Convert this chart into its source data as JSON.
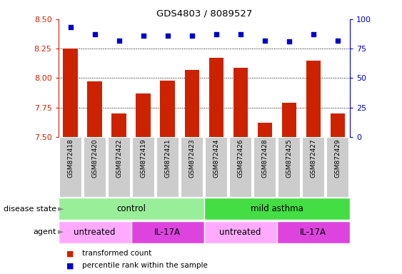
{
  "title": "GDS4803 / 8089527",
  "samples": [
    "GSM872418",
    "GSM872420",
    "GSM872422",
    "GSM872419",
    "GSM872421",
    "GSM872423",
    "GSM872424",
    "GSM872426",
    "GSM872428",
    "GSM872425",
    "GSM872427",
    "GSM872429"
  ],
  "bar_values": [
    8.25,
    7.97,
    7.7,
    7.87,
    7.98,
    8.07,
    8.17,
    8.09,
    7.62,
    7.79,
    8.15,
    7.7
  ],
  "dot_values": [
    93,
    87,
    82,
    86,
    86,
    86,
    87,
    87,
    82,
    81,
    87,
    82
  ],
  "ylim_left": [
    7.5,
    8.5
  ],
  "ylim_right": [
    0,
    100
  ],
  "yticks_left": [
    7.5,
    7.75,
    8.0,
    8.25,
    8.5
  ],
  "yticks_right": [
    0,
    25,
    50,
    75,
    100
  ],
  "bar_color": "#cc2200",
  "dot_color": "#0000cc",
  "grid_lines": [
    7.75,
    8.0,
    8.25
  ],
  "disease_state_groups": [
    {
      "label": "control",
      "start": 0,
      "end": 6,
      "color": "#99ee99"
    },
    {
      "label": "mild asthma",
      "start": 6,
      "end": 12,
      "color": "#44dd44"
    }
  ],
  "agent_groups": [
    {
      "label": "untreated",
      "start": 0,
      "end": 3,
      "color": "#ffaaff"
    },
    {
      "label": "IL-17A",
      "start": 3,
      "end": 6,
      "color": "#dd44dd"
    },
    {
      "label": "untreated",
      "start": 6,
      "end": 9,
      "color": "#ffaaff"
    },
    {
      "label": "IL-17A",
      "start": 9,
      "end": 12,
      "color": "#dd44dd"
    }
  ],
  "legend_items": [
    {
      "label": "transformed count",
      "color": "#cc2200"
    },
    {
      "label": "percentile rank within the sample",
      "color": "#0000cc"
    }
  ],
  "bar_width": 0.6,
  "label_box_color": "#cccccc",
  "background_color": "#ffffff"
}
